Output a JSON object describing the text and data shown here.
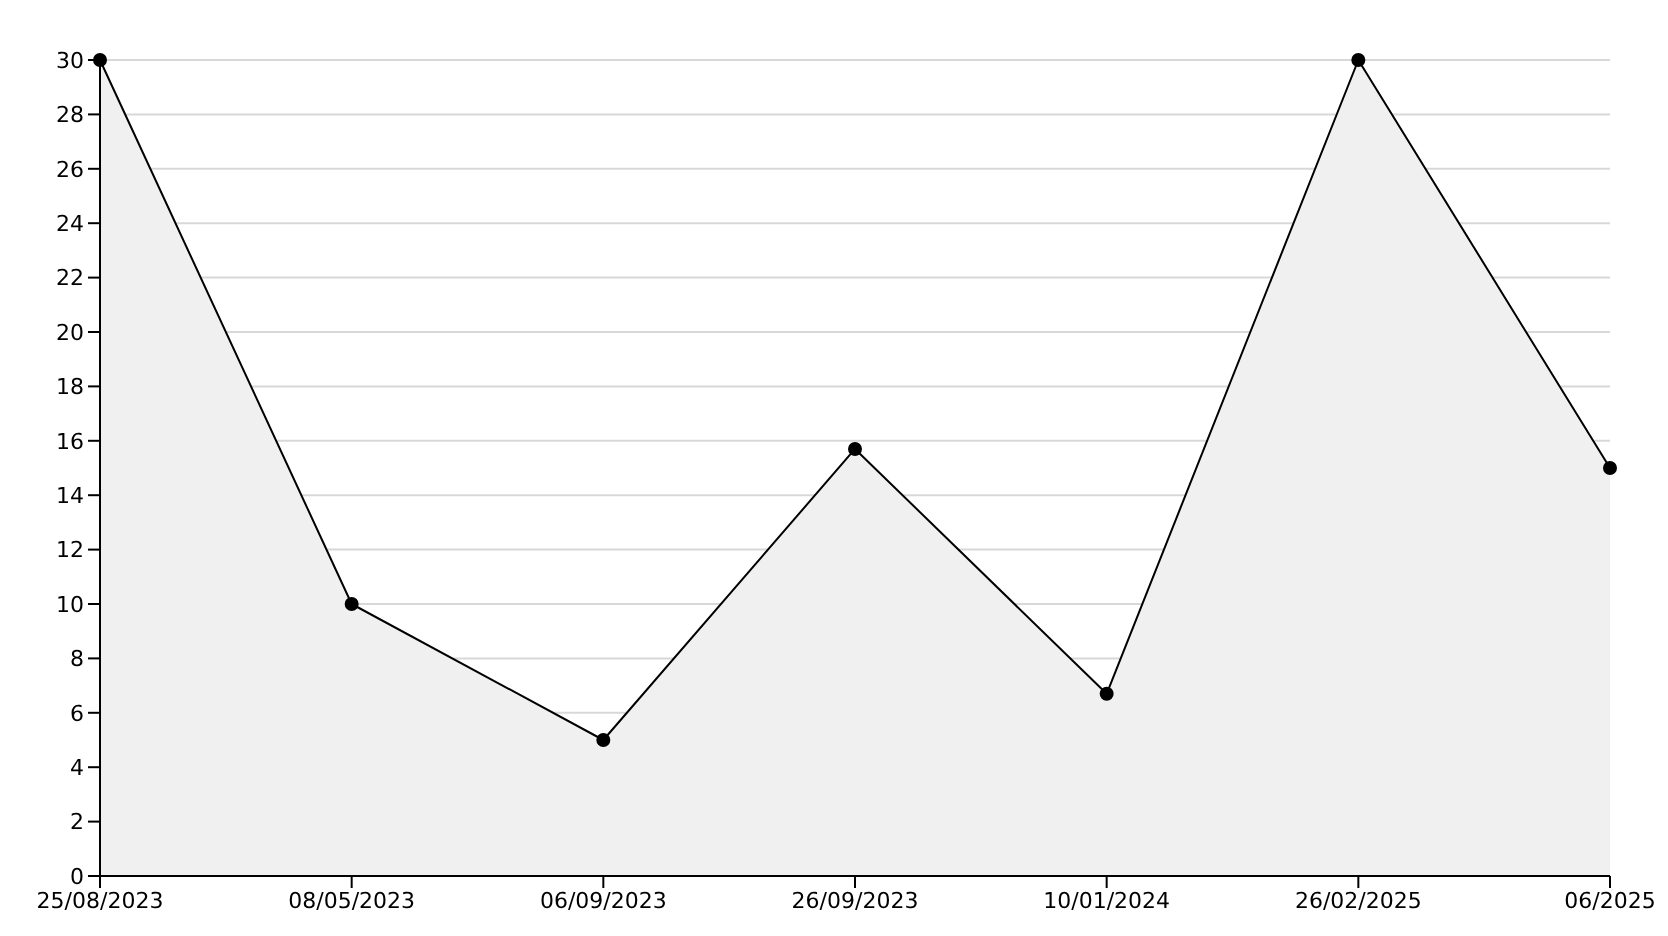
{
  "chart_data": {
    "type": "area",
    "categories": [
      "25/08/2023",
      "08/05/2023",
      "06/09/2023",
      "26/09/2023",
      "10/01/2024",
      "26/02/2025",
      "06/2025"
    ],
    "series": [
      {
        "color": "#000000",
        "values": [
          30,
          10,
          5,
          15.7,
          6.7,
          30,
          15
        ]
      }
    ],
    "ylim": [
      0,
      30
    ],
    "yticks": [
      0,
      2,
      4,
      6,
      8,
      10,
      12,
      14,
      16,
      18,
      20,
      22,
      24,
      26,
      28,
      30
    ],
    "grid": "y",
    "marker": "circle",
    "legend": false
  }
}
